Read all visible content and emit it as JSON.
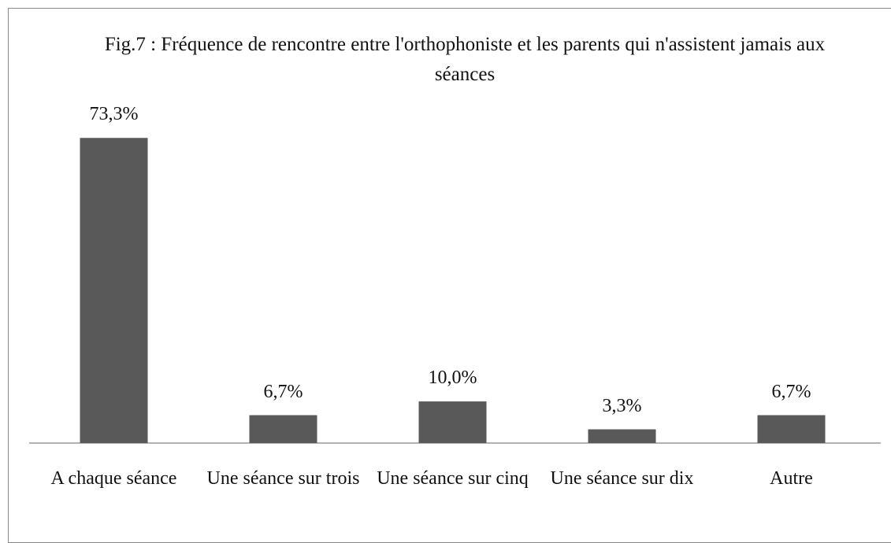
{
  "chart_data": {
    "type": "bar",
    "title": "Fig.7 : Fréquence de rencontre entre l'orthophoniste et les parents qui n'assistent jamais aux séances",
    "categories": [
      "A chaque séance",
      "Une séance sur trois",
      "Une séance sur cinq",
      "Une séance sur dix",
      "Autre"
    ],
    "values": [
      73.3,
      6.7,
      10.0,
      3.3,
      6.7
    ],
    "value_labels": [
      "73,3%",
      "6,7%",
      "10,0%",
      "3,3%",
      "6,7%"
    ],
    "color": "#595959"
  }
}
